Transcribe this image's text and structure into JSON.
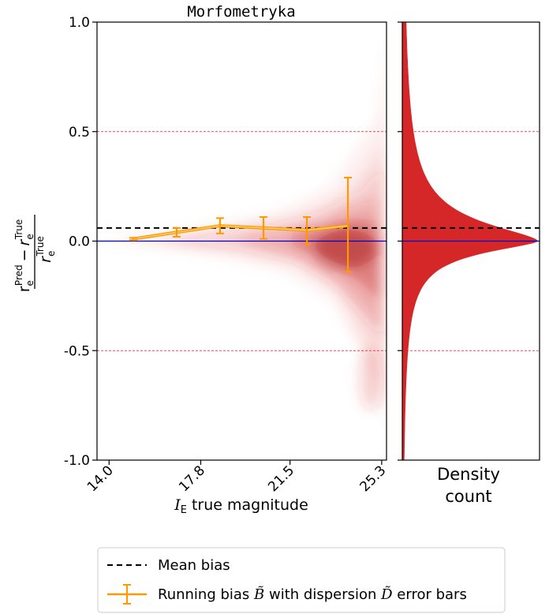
{
  "chart_data": [
    {
      "type": "scatter",
      "title": "Morfometryka",
      "xlabel": "I_E true magnitude",
      "xlabel_parts": {
        "symbol": "I",
        "subscript": "E",
        "text": "true magnitude"
      },
      "ylabel": "(r_e^Pred − r_e^True) / r_e^True",
      "ylabel_parts": {
        "r": "r",
        "e": "e",
        "pred": "Pred",
        "true": "True",
        "minus": "−"
      },
      "xlim": [
        13.5,
        25.5
      ],
      "ylim": [
        -1.0,
        1.0
      ],
      "xticks": [
        14.0,
        17.8,
        21.5,
        25.3
      ],
      "xtick_labels": [
        "14.0",
        "17.8",
        "21.5",
        "25.3"
      ],
      "yticks": [
        1.0,
        0.5,
        0.0,
        -0.5,
        -1.0
      ],
      "ytick_labels": [
        "1.0",
        "0.5",
        "0.0",
        "-0.5",
        "-1.0"
      ],
      "reference_lines": {
        "zero": 0.0,
        "upper": 0.5,
        "lower": -0.5
      },
      "mean_bias": 0.06,
      "running_bias": {
        "x": [
          15.0,
          16.8,
          18.6,
          20.4,
          22.2,
          23.9
        ],
        "y": [
          0.01,
          0.04,
          0.07,
          0.06,
          0.05,
          0.07
        ],
        "err_low": [
          0.005,
          0.02,
          0.035,
          0.05,
          0.065,
          0.21
        ],
        "err_high": [
          0.005,
          0.02,
          0.035,
          0.05,
          0.06,
          0.22
        ]
      }
    },
    {
      "type": "histogram",
      "orientation": "horizontal",
      "xlabel": "Density count",
      "xlabel_lines": [
        "Density",
        "count"
      ],
      "ylim": [
        -1.0,
        1.0
      ],
      "peak": 0.0,
      "color": "#d62728"
    }
  ],
  "legend": {
    "placement": "bottom",
    "entries": [
      {
        "label": "Mean bias",
        "style": "dashed-black"
      },
      {
        "label_prefix": "Running bias ",
        "symbol1": "B̃",
        "label_mid": " with dispersion ",
        "symbol2": "D̃",
        "label_suffix": " error bars",
        "style": "orange-errorbar"
      }
    ]
  },
  "colors": {
    "density": "#d62728",
    "running": "#ff9900",
    "zero_line": "#0000cc",
    "ref_lines": "#e31a1c",
    "mean_line": "#000000"
  }
}
